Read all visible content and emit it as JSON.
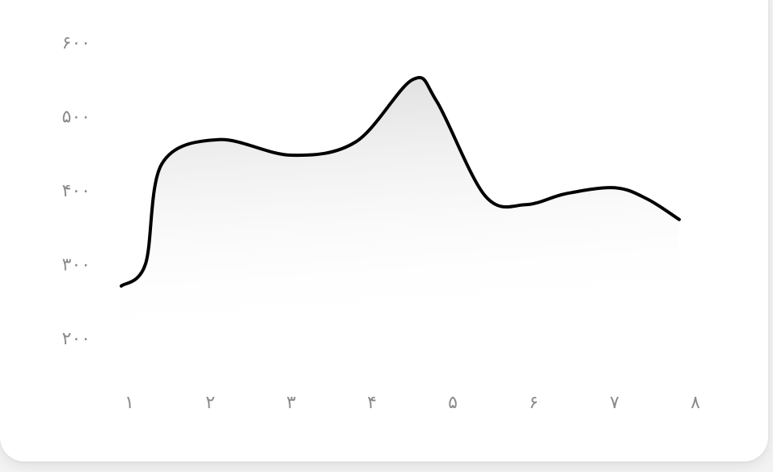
{
  "chart_data": {
    "type": "area",
    "title": "",
    "xlabel": "",
    "ylabel": "",
    "x_ticks": [
      "۱",
      "۲",
      "۳",
      "۴",
      "۵",
      "۶",
      "۷",
      "۸"
    ],
    "y_ticks": [
      "۲۰۰",
      "۳۰۰",
      "۴۰۰",
      "۵۰۰",
      "۶۰۰"
    ],
    "y_tick_values": [
      200,
      300,
      400,
      500,
      600
    ],
    "ylim": [
      200,
      600
    ],
    "grid": false,
    "colors": {
      "line": "#000000",
      "fill_top": "#dcdcdc",
      "fill_bottom": "#ffffff",
      "tick_text": "#8a8a8a",
      "background": "#ffffff"
    },
    "series": [
      {
        "points": [
          {
            "x": 0.9,
            "y": 270
          },
          {
            "x": 1.2,
            "y": 300
          },
          {
            "x": 1.4,
            "y": 435
          },
          {
            "x": 2.1,
            "y": 468
          },
          {
            "x": 3.0,
            "y": 447
          },
          {
            "x": 3.8,
            "y": 465
          },
          {
            "x": 4.5,
            "y": 549
          },
          {
            "x": 4.8,
            "y": 520
          },
          {
            "x": 5.4,
            "y": 392
          },
          {
            "x": 5.9,
            "y": 380
          },
          {
            "x": 6.4,
            "y": 395
          },
          {
            "x": 7.0,
            "y": 403
          },
          {
            "x": 7.4,
            "y": 388
          },
          {
            "x": 7.8,
            "y": 360
          }
        ]
      }
    ]
  }
}
